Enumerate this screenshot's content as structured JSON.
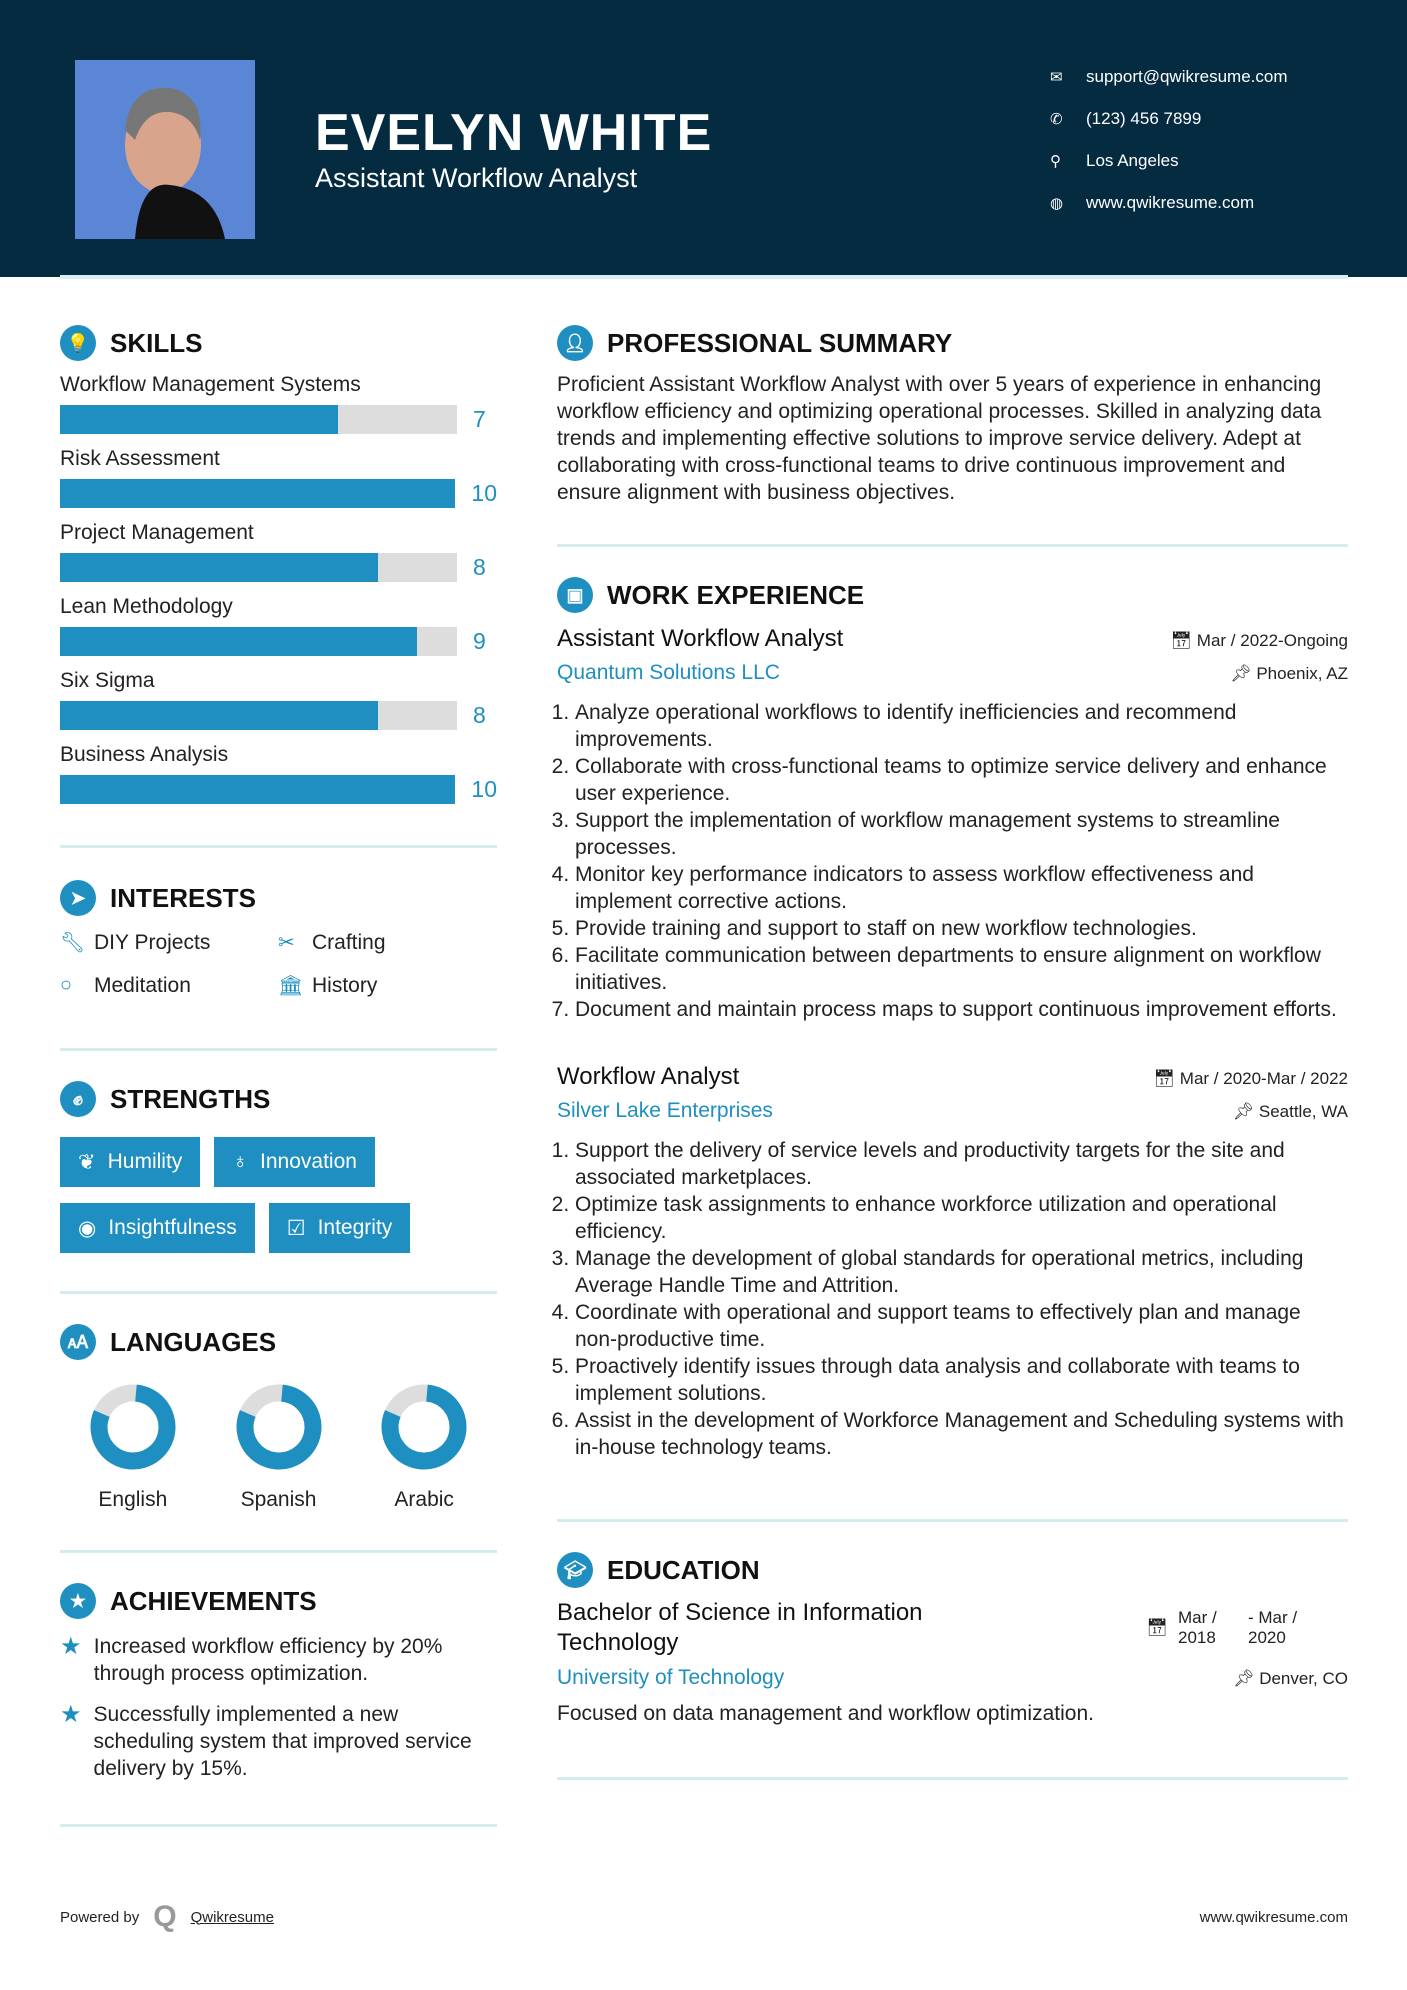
{
  "header": {
    "name": "EVELYN WHITE",
    "title": "Assistant Workflow Analyst",
    "contacts": [
      {
        "icon": "envelope-icon",
        "text": "support@qwikresume.com"
      },
      {
        "icon": "phone-icon",
        "text": "(123) 456 7899"
      },
      {
        "icon": "map-pin-icon",
        "text": "Los Angeles"
      },
      {
        "icon": "globe-icon",
        "text": "www.qwikresume.com"
      }
    ]
  },
  "skills": {
    "heading": "SKILLS",
    "max": 10,
    "items": [
      {
        "label": "Workflow Management Systems",
        "value": 7
      },
      {
        "label": "Risk Assessment",
        "value": 10
      },
      {
        "label": "Project Management",
        "value": 8
      },
      {
        "label": "Lean Methodology",
        "value": 9
      },
      {
        "label": "Six Sigma",
        "value": 8
      },
      {
        "label": "Business Analysis",
        "value": 10
      }
    ]
  },
  "interests": {
    "heading": "INTERESTS",
    "items": [
      {
        "icon": "wrench-icon",
        "label": "DIY Projects"
      },
      {
        "icon": "scissors-icon",
        "label": "Crafting"
      },
      {
        "icon": "circle-icon",
        "label": "Meditation"
      },
      {
        "icon": "museum-icon",
        "label": "History"
      }
    ]
  },
  "strengths": {
    "heading": "STRENGTHS",
    "items": [
      {
        "icon": "leaf-icon",
        "label": "Humility"
      },
      {
        "icon": "lightbulb-icon",
        "label": "Innovation"
      },
      {
        "icon": "eye-icon",
        "label": "Insightfulness"
      },
      {
        "icon": "checkbox-icon",
        "label": "Integrity"
      }
    ]
  },
  "languages": {
    "heading": "LANGUAGES",
    "items": [
      {
        "label": "English",
        "level": 0.8
      },
      {
        "label": "Spanish",
        "level": 0.8
      },
      {
        "label": "Arabic",
        "level": 0.8
      }
    ]
  },
  "achievements": {
    "heading": "ACHIEVEMENTS",
    "items": [
      "Increased workflow efficiency by 20% through process optimization.",
      "Successfully implemented a new scheduling system that improved service delivery by 15%."
    ]
  },
  "summary": {
    "heading": "PROFESSIONAL SUMMARY",
    "text": "Proficient Assistant Workflow Analyst with over 5 years of experience in enhancing workflow efficiency and optimizing operational processes. Skilled in analyzing data trends and implementing effective solutions to improve service delivery. Adept at collaborating with cross-functional teams to drive continuous improvement and ensure alignment with business objectives."
  },
  "experience": {
    "heading": "WORK EXPERIENCE",
    "jobs": [
      {
        "title": "Assistant Workflow Analyst",
        "dates": "Mar / 2022-Ongoing",
        "company": "Quantum Solutions LLC",
        "location": "Phoenix, AZ",
        "bullets": [
          "Analyze operational workflows to identify inefficiencies and recommend improvements.",
          "Collaborate with cross-functional teams to optimize service delivery and enhance user experience.",
          "Support the implementation of workflow management systems to streamline processes.",
          "Monitor key performance indicators to assess workflow effectiveness and implement corrective actions.",
          "Provide training and support to staff on new workflow technologies.",
          "Facilitate communication between departments to ensure alignment on workflow initiatives.",
          "Document and maintain process maps to support continuous improvement efforts."
        ]
      },
      {
        "title": "Workflow Analyst",
        "dates": "Mar / 2020-Mar / 2022",
        "company": "Silver Lake Enterprises",
        "location": "Seattle, WA",
        "bullets": [
          "Support the delivery of service levels and productivity targets for the site and associated marketplaces.",
          "Optimize task assignments to enhance workforce utilization and operational efficiency.",
          "Manage the development of global standards for operational metrics, including Average Handle Time and Attrition.",
          "Coordinate with operational and support teams to effectively plan and manage non-productive time.",
          "Proactively identify issues through data analysis and collaborate with teams to implement solutions.",
          "Assist in the development of Workforce Management and Scheduling systems with in-house technology teams."
        ]
      }
    ]
  },
  "education": {
    "heading": "EDUCATION",
    "degree": "Bachelor of Science in Information Technology",
    "start": "Mar / 2018",
    "end": "- Mar / 2020",
    "school": "University of Technology",
    "location": "Denver, CO",
    "description": "Focused on data management and workflow optimization."
  },
  "footer": {
    "powered_by": "Powered by",
    "brand": "Qwikresume",
    "website": "www.qwikresume.com"
  },
  "colors": {
    "header_bg": "#042b40",
    "accent": "#1e8fc0",
    "bar_bg": "#dddddd",
    "divider": "#d5ecec"
  }
}
